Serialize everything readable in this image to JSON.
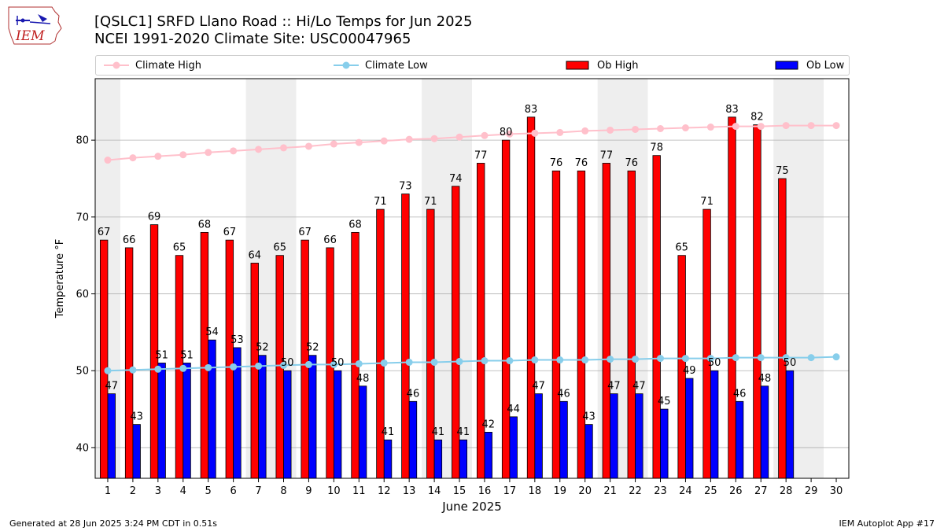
{
  "title_line1": "[QSLC1] SRFD Llano Road :: Hi/Lo Temps for Jun 2025",
  "title_line2": "NCEI 1991-2020 Climate Site: USC00047965",
  "logo_text": "IEM",
  "footer_left": "Generated at 28 Jun 2025 3:24 PM CDT in 0.51s",
  "footer_right": "IEM Autoplot App #17",
  "colors": {
    "ob_high": "#ff0000",
    "ob_low": "#0000ff",
    "climate_high": "#ffc0cb",
    "climate_low": "#87ceeb",
    "weekend_shade": "#eeeeee",
    "grid": "#b0b0b0"
  },
  "chart_data": {
    "type": "bar",
    "xlabel": "June 2025",
    "ylabel": "Temperature °F",
    "ylim": [
      36,
      88
    ],
    "xlim": [
      0.5,
      30.5
    ],
    "yticks": [
      40,
      50,
      60,
      70,
      80
    ],
    "grid": "y",
    "legend_position": "top",
    "categories": [
      1,
      2,
      3,
      4,
      5,
      6,
      7,
      8,
      9,
      10,
      11,
      12,
      13,
      14,
      15,
      16,
      17,
      18,
      19,
      20,
      21,
      22,
      23,
      24,
      25,
      26,
      27,
      28,
      29,
      30
    ],
    "shaded_days": [
      [
        1,
        1
      ],
      [
        7,
        8
      ],
      [
        14,
        15
      ],
      [
        21,
        22
      ],
      [
        28,
        29
      ]
    ],
    "series": [
      {
        "name": "Climate High",
        "kind": "line",
        "values": [
          77.4,
          77.7,
          77.9,
          78.1,
          78.4,
          78.6,
          78.8,
          79.0,
          79.2,
          79.5,
          79.7,
          79.9,
          80.1,
          80.2,
          80.4,
          80.6,
          80.8,
          80.9,
          81.0,
          81.2,
          81.3,
          81.4,
          81.5,
          81.6,
          81.7,
          81.8,
          81.8,
          81.9,
          81.9,
          81.9
        ]
      },
      {
        "name": "Climate Low",
        "kind": "line",
        "values": [
          50.0,
          50.1,
          50.2,
          50.3,
          50.4,
          50.5,
          50.6,
          50.7,
          50.8,
          50.8,
          50.9,
          51.0,
          51.1,
          51.1,
          51.2,
          51.3,
          51.3,
          51.4,
          51.4,
          51.4,
          51.5,
          51.5,
          51.6,
          51.6,
          51.6,
          51.7,
          51.7,
          51.7,
          51.7,
          51.8
        ]
      },
      {
        "name": "Ob High",
        "kind": "bar",
        "values": [
          67,
          66,
          69,
          65,
          68,
          67,
          64,
          65,
          67,
          66,
          68,
          71,
          73,
          71,
          74,
          77,
          80,
          83,
          76,
          76,
          77,
          76,
          78,
          65,
          71,
          83,
          82,
          75,
          null,
          null
        ]
      },
      {
        "name": "Ob Low",
        "kind": "bar",
        "values": [
          47,
          43,
          51,
          51,
          54,
          53,
          52,
          50,
          52,
          50,
          48,
          41,
          46,
          41,
          41,
          42,
          44,
          47,
          46,
          43,
          47,
          47,
          45,
          49,
          50,
          46,
          48,
          50,
          null,
          null
        ]
      }
    ]
  }
}
